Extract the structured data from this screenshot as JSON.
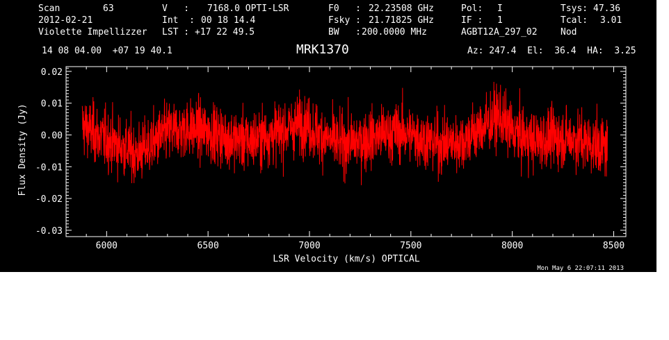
{
  "header": {
    "row1": {
      "scan_label": "Scan",
      "scan_value": "63",
      "v_label": "V   :",
      "v_value": "7168.0 OPTI-LSR",
      "f0_label": "F0   :",
      "f0_value": "22.23508 GHz",
      "pol_label": "Pol:",
      "pol_value": "I",
      "tsys_label": "Tsys:",
      "tsys_value": "47.36"
    },
    "row2": {
      "date": "2012-02-21",
      "int_label": "Int  :",
      "int_value": "00 18 14.4",
      "fsky_label": "Fsky :",
      "fsky_value": "21.71825 GHz",
      "if_label": "IF :",
      "if_value": "1",
      "tcal_label": "Tcal:",
      "tcal_value": "3.01"
    },
    "row3": {
      "observer": "Violette Impellizzer",
      "lst_label": "LST :",
      "lst_value": "+17 22 49.5",
      "bw_label": "BW   :",
      "bw_value": "200.0000 MHz",
      "project": "AGBT12A_297_02",
      "mode": "Nod"
    },
    "coords": "14 08 04.00  +07 19 40.1",
    "source_name": "MRK1370",
    "pointing": "Az: 247.4  El:  36.4  HA:  3.25",
    "timestamp": "Mon May  6 22:07:11 2013"
  },
  "chart_data": {
    "type": "line",
    "xlabel": "LSR Velocity (km/s) OPTICAL",
    "ylabel": "Flux Density (Jy)",
    "xlim": [
      5800,
      8560
    ],
    "ylim": [
      -0.032,
      0.0215
    ],
    "xticks": [
      6000,
      6500,
      7000,
      7500,
      8000,
      8500
    ],
    "xtick_labels": [
      "6000",
      "6500",
      "7000",
      "7500",
      "8000",
      "8500"
    ],
    "yticks": [
      -0.03,
      -0.02,
      -0.01,
      0.0,
      0.01,
      0.02
    ],
    "ytick_labels": [
      "-0.03",
      "-0.02",
      "-0.01",
      "0.00",
      "0.01",
      "0.02"
    ],
    "colors": {
      "series": "#ff0000",
      "axes": "#ffffff",
      "background": "#000000"
    },
    "series": [
      {
        "x_range": [
          5880,
          8470
        ],
        "baseline": [
          [
            5880,
            0.003
          ],
          [
            5950,
            0.0
          ],
          [
            6050,
            -0.003
          ],
          [
            6150,
            -0.006
          ],
          [
            6200,
            -0.004
          ],
          [
            6300,
            0.001
          ],
          [
            6400,
            0.002
          ],
          [
            6500,
            0.001
          ],
          [
            6600,
            -0.001
          ],
          [
            6700,
            -0.002
          ],
          [
            6800,
            0.0
          ],
          [
            6900,
            0.002
          ],
          [
            6970,
            0.004
          ],
          [
            7050,
            0.0
          ],
          [
            7150,
            -0.003
          ],
          [
            7250,
            -0.002
          ],
          [
            7350,
            0.0
          ],
          [
            7450,
            0.001
          ],
          [
            7550,
            -0.001
          ],
          [
            7650,
            -0.003
          ],
          [
            7750,
            -0.002
          ],
          [
            7850,
            0.002
          ],
          [
            7930,
            0.006
          ],
          [
            8000,
            0.001
          ],
          [
            8100,
            -0.002
          ],
          [
            8200,
            -0.001
          ],
          [
            8300,
            -0.001
          ],
          [
            8400,
            -0.003
          ],
          [
            8470,
            -0.004
          ]
        ],
        "noise_rms": 0.0046,
        "peak_max": 0.018,
        "peak_min": -0.02
      }
    ]
  }
}
